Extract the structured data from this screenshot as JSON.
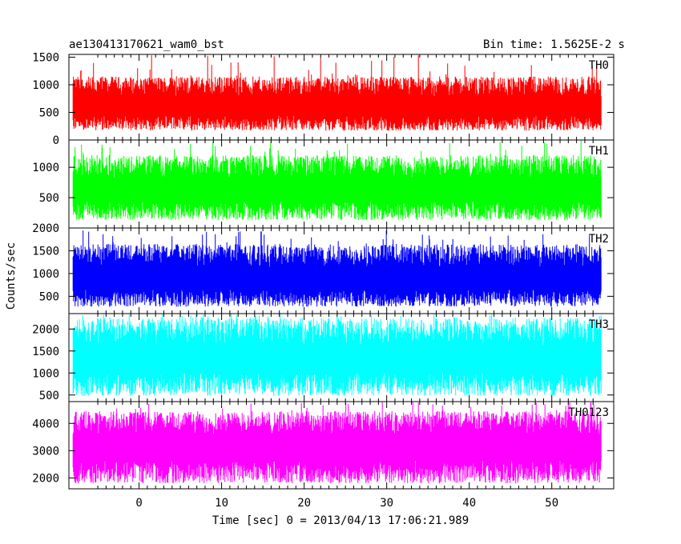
{
  "header": {
    "title": "ae130413170621_wam0_bst",
    "bin_time": "Bin time: 1.5625E-2 s"
  },
  "chart_data": {
    "type": "line",
    "xlabel": "Time [sec] 0 = 2013/04/13 17:06:21.989",
    "ylabel": "Counts/sec",
    "xlim": [
      -8.5,
      57.5
    ],
    "x_ticks": [
      0,
      10,
      20,
      30,
      40,
      50
    ],
    "x_range": [
      -8.0,
      56.0
    ],
    "bin_time": 0.015625,
    "grid": false,
    "panels": [
      {
        "name": "TH0",
        "color": "#ff0000",
        "ylim": [
          0,
          1550
        ],
        "yticks": [
          0,
          500,
          1000,
          1500
        ],
        "mean": 600,
        "low": 170,
        "high": 1150,
        "spike": 1550
      },
      {
        "name": "TH1",
        "color": "#00ff00",
        "ylim": [
          0,
          1450
        ],
        "yticks": [
          500,
          1000
        ],
        "mean": 620,
        "low": 130,
        "high": 1200,
        "spike": 1450
      },
      {
        "name": "TH2",
        "color": "#0000ff",
        "ylim": [
          120,
          2000
        ],
        "yticks": [
          500,
          1000,
          1500,
          2000
        ],
        "mean": 850,
        "low": 270,
        "high": 1650,
        "spike": 1950
      },
      {
        "name": "TH3",
        "color": "#00ffff",
        "ylim": [
          350,
          2350
        ],
        "yticks": [
          500,
          1000,
          1500,
          2000
        ],
        "mean": 1300,
        "low": 480,
        "high": 2250,
        "spike": 2350
      },
      {
        "name": "TH0123",
        "color": "#ff00ff",
        "ylim": [
          1600,
          4800
        ],
        "yticks": [
          2000,
          3000,
          4000
        ],
        "mean": 3100,
        "low": 1800,
        "high": 4450,
        "spike": 4800
      }
    ]
  }
}
